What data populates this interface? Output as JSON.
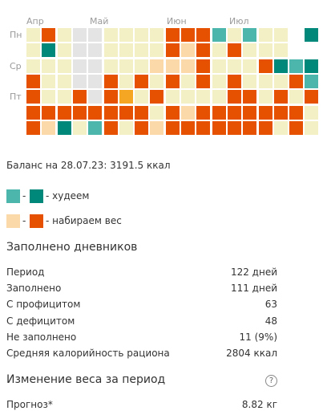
{
  "heatmap": {
    "months": [
      "Апр",
      "Май",
      "Июн",
      "Июл"
    ],
    "weekdays": [
      "Пн",
      "Ср",
      "Пт"
    ],
    "palette": {
      "p": "#f4f0c6",
      "g": "#e4e4e4",
      "t": "#4db6ac",
      "T": "#00897b",
      "l": "#fcd9a8",
      "o": "#f5a623",
      "d": "#e55100",
      "_": "#ffffff"
    },
    "rows": [
      "pdpggppppdddtptpp_T",
      "pTpggppppdldpdppp_ _",
      "pppggpppllldpppdTtT",
      "dppggdpdpdpdpdpppdt",
      "dppdgdopdppppddpdpd",
      "ddddddddpdldddddddp",
      "dlTptdpdldddddddpdp"
    ]
  },
  "balance": "Баланс на 28.07.23: 3191.5 ккал",
  "legend": {
    "separator": "-",
    "lose": "- худеем",
    "gain": "- набираем вес"
  },
  "diaries": {
    "title": "Заполнено дневников",
    "rows": [
      [
        "Период",
        "122 дней"
      ],
      [
        "Заполнено",
        "111 дней"
      ],
      [
        "С профицитом",
        "63"
      ],
      [
        "С дефицитом",
        "48"
      ],
      [
        "Не заполнено",
        "11 (9%)"
      ],
      [
        "Средняя калорийность рациона",
        "2804 ккал"
      ]
    ]
  },
  "weight": {
    "title": "Изменение веса за период",
    "help": "?",
    "rows": [
      [
        "Прогноз*",
        "8.82 кг"
      ]
    ]
  }
}
